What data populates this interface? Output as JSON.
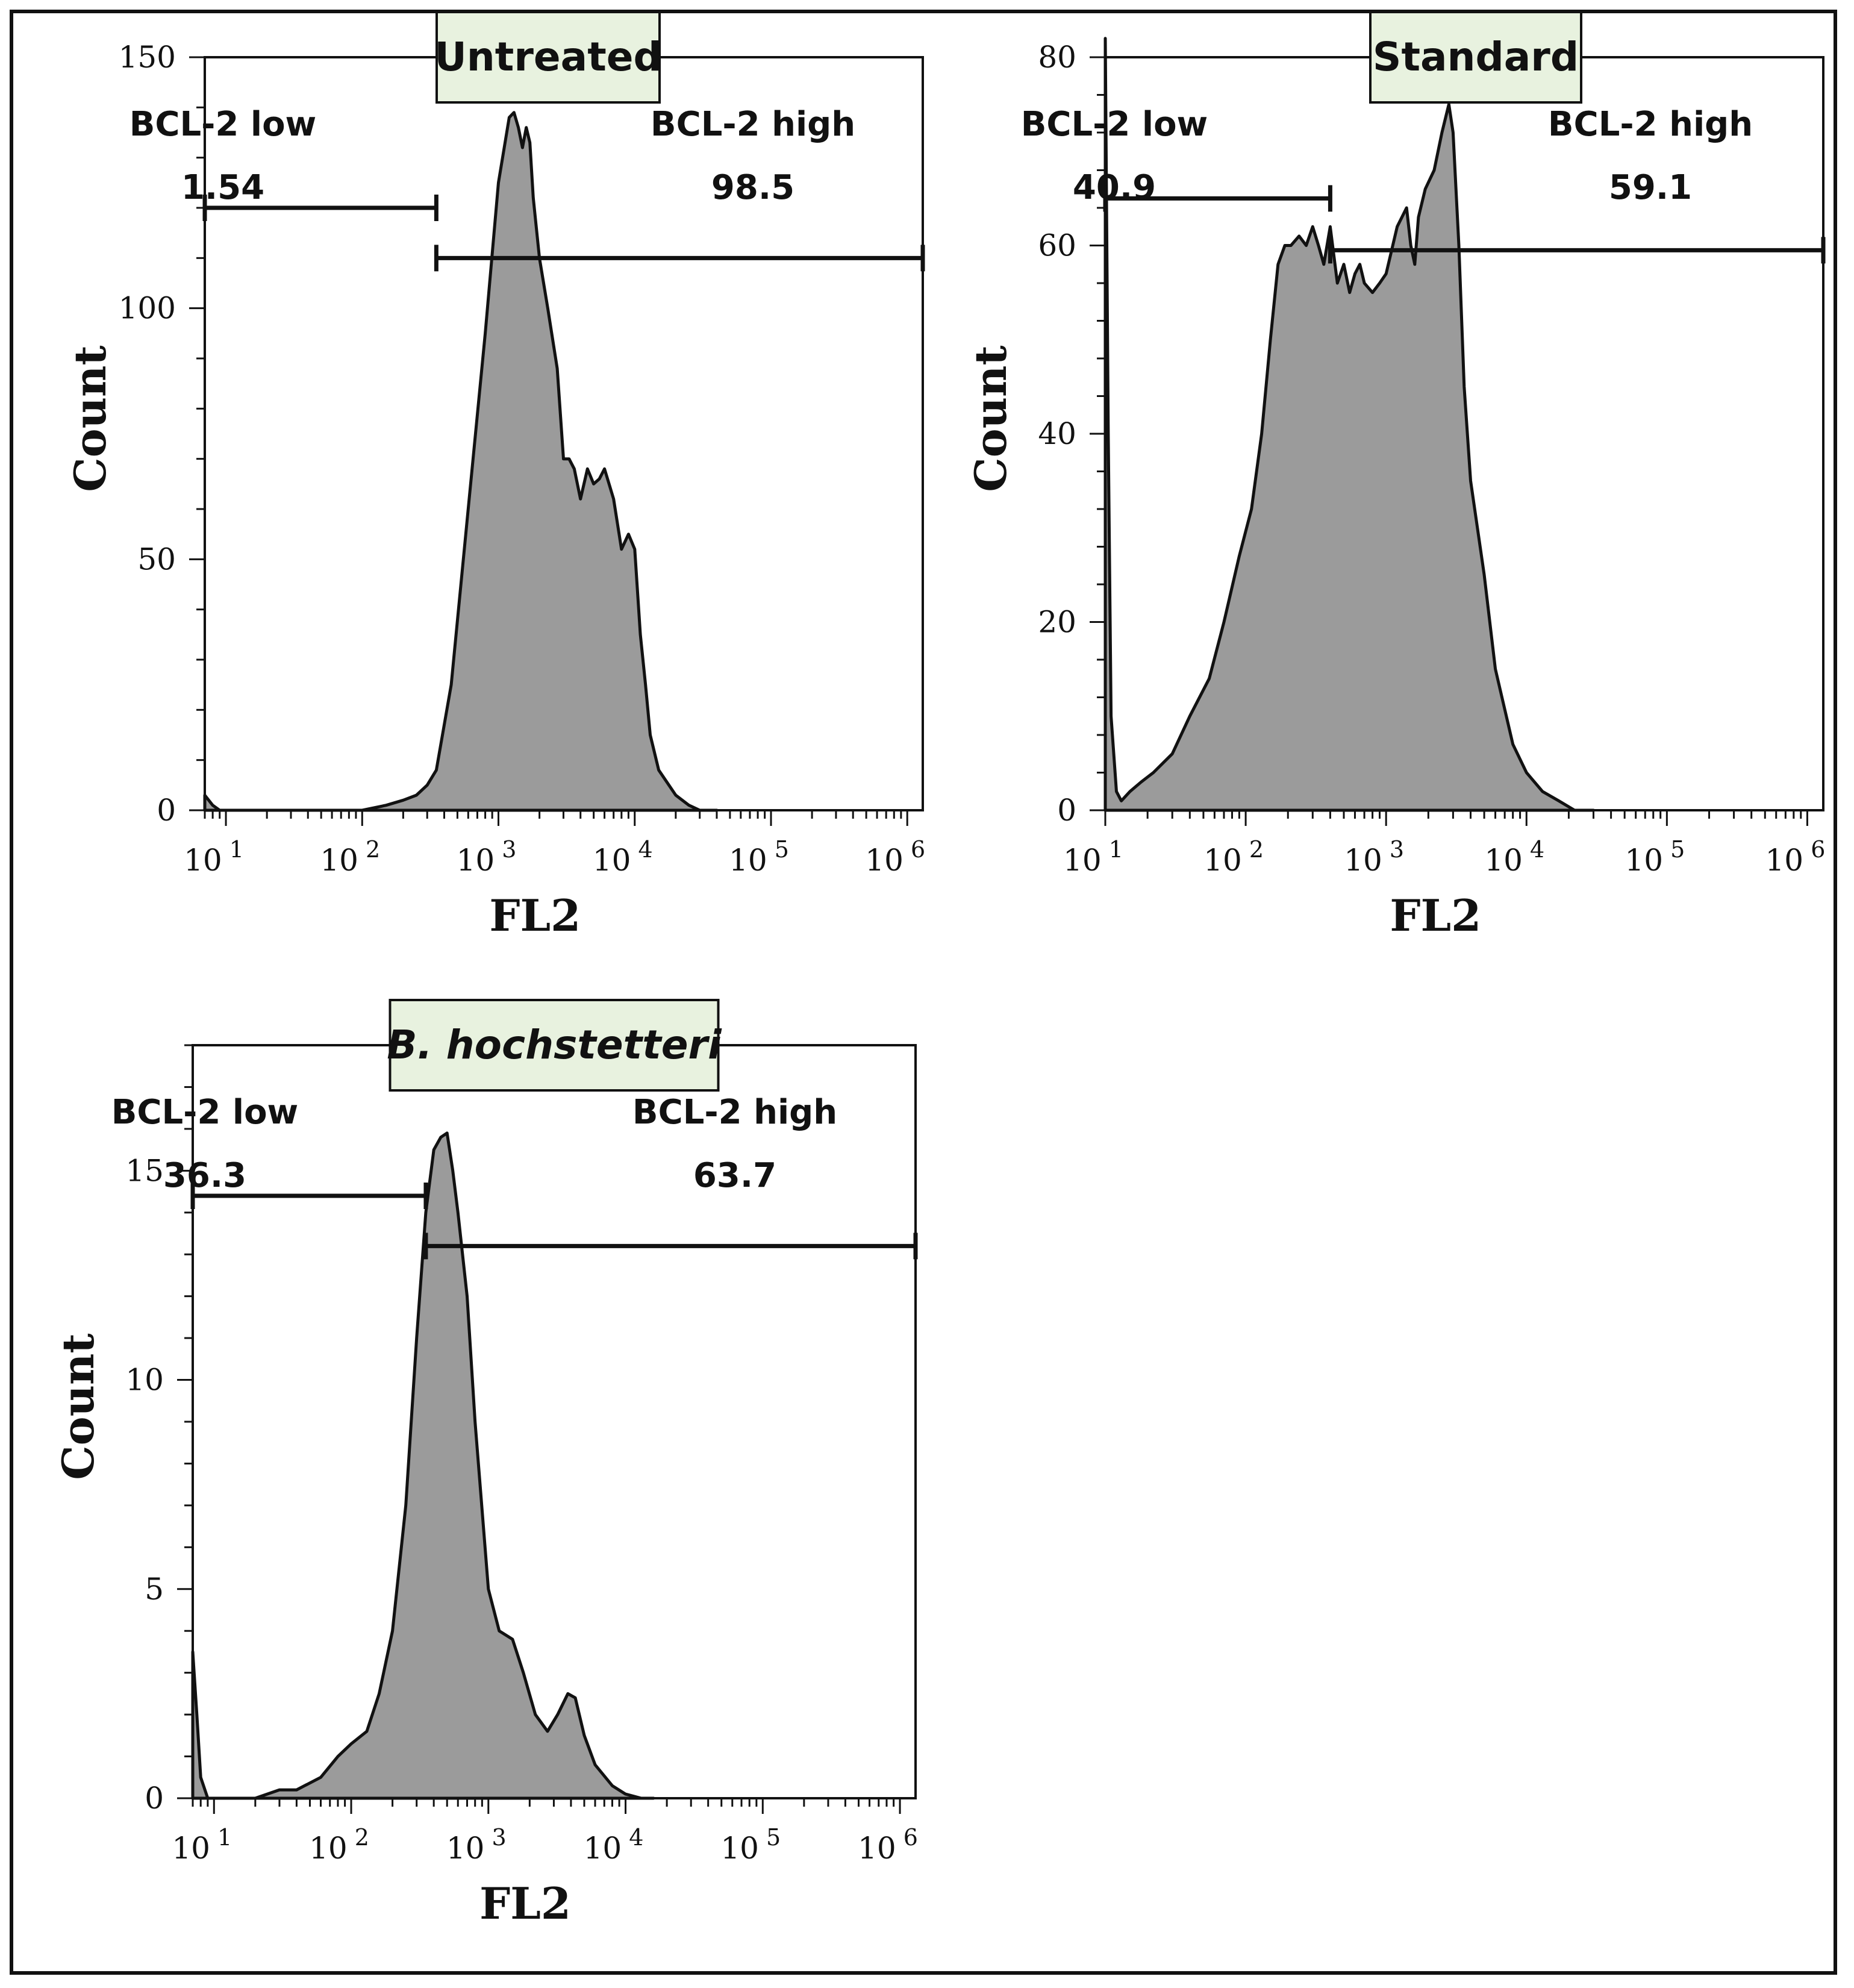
{
  "colors": {
    "fill": "#9b9b9b",
    "stroke": "#111111",
    "title_box": "#e8f2df"
  },
  "chart_data": [
    {
      "id": "untreated",
      "type": "area",
      "title": "Untreated",
      "xlabel": "FL2",
      "ylabel": "Count",
      "xscale": "log",
      "xlim": [
        7,
        1300000
      ],
      "ylim": [
        0,
        150
      ],
      "yticks": [
        0,
        50,
        100,
        150
      ],
      "xticks": [
        {
          "value": 10,
          "base": "10",
          "exp": "1"
        },
        {
          "value": 100,
          "base": "10",
          "exp": "2"
        },
        {
          "value": 1000,
          "base": "10",
          "exp": "3"
        },
        {
          "value": 10000,
          "base": "10",
          "exp": "4"
        },
        {
          "value": 100000,
          "base": "10",
          "exp": "5"
        },
        {
          "value": 1000000,
          "base": "10",
          "exp": "6"
        }
      ],
      "gates": [
        {
          "name": "BCL-2 low",
          "value": "1.54",
          "x_start": 7,
          "x_end": 350,
          "y": 120
        },
        {
          "name": "BCL-2 high",
          "value": "98.5",
          "x_start": 350,
          "x_end": 1300000,
          "y": 110
        }
      ],
      "series": [
        {
          "name": "histogram",
          "x": [
            7,
            8,
            9,
            10,
            30,
            100,
            150,
            200,
            250,
            300,
            350,
            450,
            600,
            800,
            1000,
            1200,
            1300,
            1400,
            1500,
            1600,
            1700,
            1800,
            2000,
            2300,
            2700,
            3000,
            3300,
            3600,
            4000,
            4500,
            5000,
            5500,
            6000,
            7000,
            8000,
            9000,
            10000,
            11000,
            12000,
            13000,
            15000,
            20000,
            25000,
            30000,
            40000
          ],
          "values": [
            3,
            1,
            0,
            0,
            0,
            0,
            1,
            2,
            3,
            5,
            8,
            25,
            60,
            95,
            125,
            138,
            139,
            136,
            132,
            136,
            133,
            122,
            110,
            100,
            88,
            70,
            70,
            68,
            62,
            68,
            65,
            66,
            68,
            62,
            52,
            55,
            52,
            35,
            25,
            15,
            8,
            3,
            1,
            0,
            0
          ]
        }
      ]
    },
    {
      "id": "standard",
      "type": "area",
      "title": "Standard",
      "xlabel": "FL2",
      "ylabel": "Count",
      "xscale": "log",
      "xlim": [
        10,
        1300000
      ],
      "ylim": [
        0,
        80
      ],
      "yticks": [
        0,
        20,
        40,
        60,
        80
      ],
      "xticks": [
        {
          "value": 10,
          "base": "10",
          "exp": "1"
        },
        {
          "value": 100,
          "base": "10",
          "exp": "2"
        },
        {
          "value": 1000,
          "base": "10",
          "exp": "3"
        },
        {
          "value": 10000,
          "base": "10",
          "exp": "4"
        },
        {
          "value": 100000,
          "base": "10",
          "exp": "5"
        },
        {
          "value": 1000000,
          "base": "10",
          "exp": "6"
        }
      ],
      "gates": [
        {
          "name": "BCL-2 low",
          "value": "40.9",
          "x_start": 10,
          "x_end": 400,
          "y": 65
        },
        {
          "name": "BCL-2 high",
          "value": "59.1",
          "x_start": 400,
          "x_end": 1300000,
          "y": 59.5
        }
      ],
      "series": [
        {
          "name": "histogram",
          "x": [
            10,
            10.5,
            11,
            12,
            13,
            15,
            18,
            22,
            30,
            40,
            55,
            70,
            90,
            110,
            130,
            150,
            170,
            190,
            210,
            240,
            270,
            300,
            330,
            360,
            400,
            450,
            500,
            550,
            600,
            650,
            700,
            800,
            900,
            1000,
            1200,
            1400,
            1500,
            1600,
            1700,
            1900,
            2200,
            2500,
            2800,
            3000,
            3300,
            3600,
            4000,
            5000,
            6000,
            8000,
            10000,
            13000,
            17000,
            22000,
            30000
          ],
          "values": [
            82,
            40,
            10,
            2,
            1,
            2,
            3,
            4,
            6,
            10,
            14,
            20,
            27,
            32,
            40,
            50,
            58,
            60,
            60,
            61,
            60,
            62,
            60,
            58,
            62,
            56,
            58,
            55,
            57,
            58,
            56,
            55,
            56,
            57,
            62,
            64,
            60,
            58,
            63,
            66,
            68,
            72,
            75,
            72,
            60,
            45,
            35,
            25,
            15,
            7,
            4,
            2,
            1,
            0,
            0
          ]
        }
      ]
    },
    {
      "id": "b-hochstetteri",
      "type": "area",
      "title": "B. hochstetteri",
      "xlabel": "FL2",
      "ylabel": "Count",
      "xscale": "log",
      "xlim": [
        7,
        1300000
      ],
      "ylim": [
        0,
        18
      ],
      "yticks": [
        0,
        5,
        10,
        15
      ],
      "xticks": [
        {
          "value": 10,
          "base": "10",
          "exp": "1"
        },
        {
          "value": 100,
          "base": "10",
          "exp": "2"
        },
        {
          "value": 1000,
          "base": "10",
          "exp": "3"
        },
        {
          "value": 10000,
          "base": "10",
          "exp": "4"
        },
        {
          "value": 100000,
          "base": "10",
          "exp": "5"
        },
        {
          "value": 1000000,
          "base": "10",
          "exp": "6"
        }
      ],
      "gates": [
        {
          "name": "BCL-2 low",
          "value": "36.3",
          "x_start": 7,
          "x_end": 350,
          "y": 14.4
        },
        {
          "name": "BCL-2 high",
          "value": "63.7",
          "x_start": 350,
          "x_end": 1300000,
          "y": 13.2
        }
      ],
      "series": [
        {
          "name": "histogram",
          "x": [
            7,
            7.5,
            8,
            9,
            10,
            20,
            30,
            40,
            60,
            80,
            100,
            130,
            160,
            200,
            250,
            300,
            350,
            400,
            450,
            500,
            550,
            600,
            700,
            800,
            1000,
            1200,
            1500,
            1800,
            2200,
            2700,
            3200,
            3800,
            4300,
            5000,
            6000,
            8000,
            10000,
            13000,
            16000
          ],
          "values": [
            3.5,
            2,
            0.5,
            0,
            0,
            0,
            0.2,
            0.2,
            0.5,
            1,
            1.3,
            1.6,
            2.5,
            4,
            7,
            11,
            14,
            15.5,
            15.8,
            15.9,
            15,
            14,
            12,
            9,
            5,
            4,
            3.8,
            3,
            2,
            1.6,
            2,
            2.5,
            2.4,
            1.5,
            0.8,
            0.3,
            0.1,
            0,
            0
          ]
        }
      ]
    }
  ]
}
